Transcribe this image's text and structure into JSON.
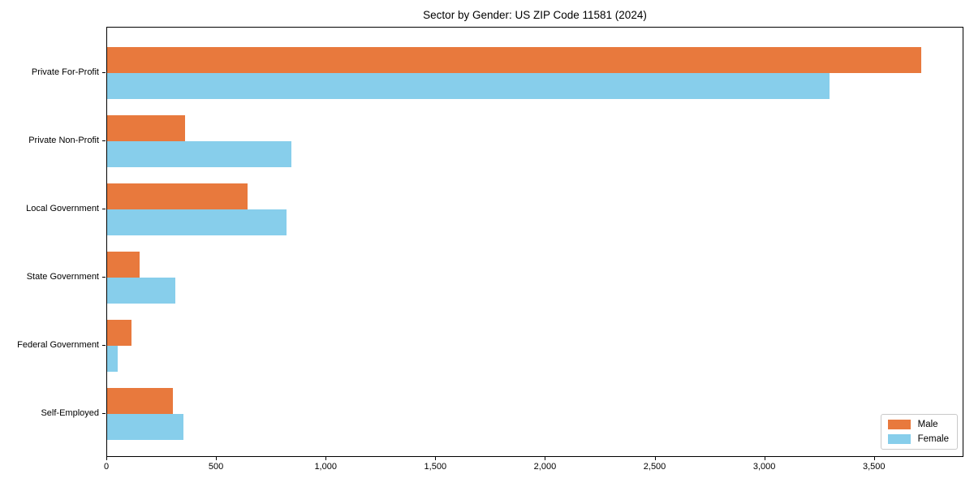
{
  "title": "Sector by Gender: US ZIP Code 11581 (2024)",
  "chart_data": {
    "type": "bar",
    "orientation": "horizontal",
    "title": "Sector by Gender: US ZIP Code 11581 (2024)",
    "categories": [
      "Private For-Profit",
      "Private Non-Profit",
      "Local Government",
      "State Government",
      "Federal Government",
      "Self-Employed"
    ],
    "series": [
      {
        "name": "Male",
        "color": "#E8793D",
        "values": [
          3720,
          355,
          640,
          150,
          110,
          300
        ]
      },
      {
        "name": "Female",
        "color": "#87CEEB",
        "values": [
          3300,
          840,
          820,
          310,
          50,
          350
        ]
      }
    ],
    "xlabel": "",
    "ylabel": "",
    "xlim": [
      0,
      3908
    ],
    "xticks": [
      0,
      500,
      1000,
      1500,
      2000,
      2500,
      3000,
      3500
    ],
    "xtick_labels": [
      "0",
      "500",
      "1,000",
      "1,500",
      "2,000",
      "2,500",
      "3,000",
      "3,500"
    ],
    "grid": false,
    "legend_position": "lower right",
    "legend": {
      "items": [
        "Male",
        "Female"
      ]
    }
  }
}
